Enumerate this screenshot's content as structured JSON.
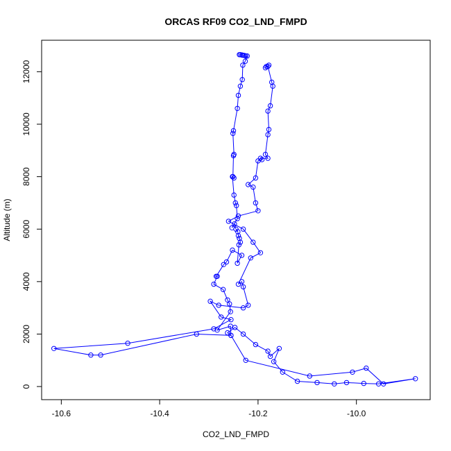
{
  "chart_data": {
    "type": "line",
    "title": "ORCAS RF09 CO2_LND_FMPD",
    "xlabel": "CO2_LND_FMPD",
    "ylabel": "Altitude (m)",
    "xlim": [
      -10.64,
      -9.85
    ],
    "ylim": [
      -500,
      13200
    ],
    "xticks": [
      -10.6,
      -10.4,
      -10.2,
      -10.0
    ],
    "xtick_labels": [
      "-10.6",
      "-10.4",
      "-10.2",
      "-10.0"
    ],
    "yticks": [
      0,
      2000,
      4000,
      6000,
      8000,
      10000,
      12000
    ],
    "ytick_labels": [
      "0",
      "2000",
      "4000",
      "6000",
      "8000",
      "10000",
      "12000"
    ],
    "grid": false,
    "colors": {
      "series": "#0000ff"
    },
    "series": [
      {
        "x": [
          -10.238,
          -10.236,
          -10.233,
          -10.231,
          -10.228,
          -10.225,
          -10.222,
          -10.226,
          -10.231,
          -10.232,
          -10.236,
          -10.24,
          -10.242,
          -10.25,
          -10.251,
          -10.249,
          -10.25,
          -10.251,
          -10.249,
          -10.252,
          -10.249,
          -10.246,
          -10.244,
          -10.242,
          -10.253,
          -10.248,
          -10.245,
          -10.241,
          -10.24,
          -10.238,
          -10.236,
          -10.239,
          -10.242,
          -10.233,
          -10.252,
          -10.264,
          -10.27,
          -10.285,
          -10.283,
          -10.29,
          -10.271,
          -10.262,
          -10.258,
          -10.256,
          -10.283,
          -10.256,
          -10.255,
          -10.262,
          -10.247,
          -10.23,
          -10.205,
          -10.18,
          -10.175,
          -10.157,
          -10.168,
          -10.15,
          -10.12,
          -10.08,
          -10.045,
          -10.02,
          -9.985,
          -9.955,
          -9.88,
          -9.945,
          -9.98,
          -10.008,
          -10.095,
          -10.225,
          -10.255,
          -10.325,
          -10.52,
          -10.54,
          -10.615,
          -10.465,
          -10.29,
          -10.255,
          -10.275,
          -10.297,
          -10.28,
          -10.23,
          -10.22,
          -10.23,
          -10.233,
          -10.24,
          -10.215,
          -10.195,
          -10.21,
          -10.23,
          -10.26,
          -10.24,
          -10.2,
          -10.205,
          -10.21,
          -10.22,
          -10.205,
          -10.2,
          -10.192,
          -10.195,
          -10.18,
          -10.185,
          -10.18,
          -10.178,
          -10.18,
          -10.175,
          -10.17,
          -10.172,
          -10.18,
          -10.183,
          -10.185,
          -10.178
        ],
        "y": [
          12650,
          12650,
          12640,
          12630,
          12620,
          12600,
          12600,
          12400,
          12250,
          11700,
          11450,
          11100,
          10600,
          9750,
          9650,
          8850,
          8800,
          8000,
          7950,
          8000,
          7300,
          7000,
          6900,
          6400,
          6050,
          6200,
          6000,
          5900,
          5750,
          5650,
          5500,
          5400,
          4700,
          5000,
          5200,
          4750,
          4650,
          4200,
          4200,
          3900,
          3700,
          3300,
          3150,
          2850,
          2150,
          2300,
          1950,
          2050,
          2250,
          2000,
          1600,
          1350,
          1150,
          1450,
          950,
          550,
          200,
          150,
          100,
          150,
          120,
          100,
          300,
          100,
          700,
          550,
          400,
          1000,
          1950,
          2000,
          1200,
          1200,
          1450,
          1650,
          2200,
          2550,
          2650,
          3250,
          3100,
          3000,
          3100,
          3800,
          4000,
          3900,
          4900,
          5100,
          5500,
          6000,
          6300,
          6500,
          6700,
          7000,
          7600,
          7700,
          7950,
          8600,
          8650,
          8700,
          8700,
          8850,
          9600,
          9800,
          10500,
          10700,
          11450,
          11600,
          12200,
          12200,
          12150,
          12250
        ]
      }
    ]
  }
}
